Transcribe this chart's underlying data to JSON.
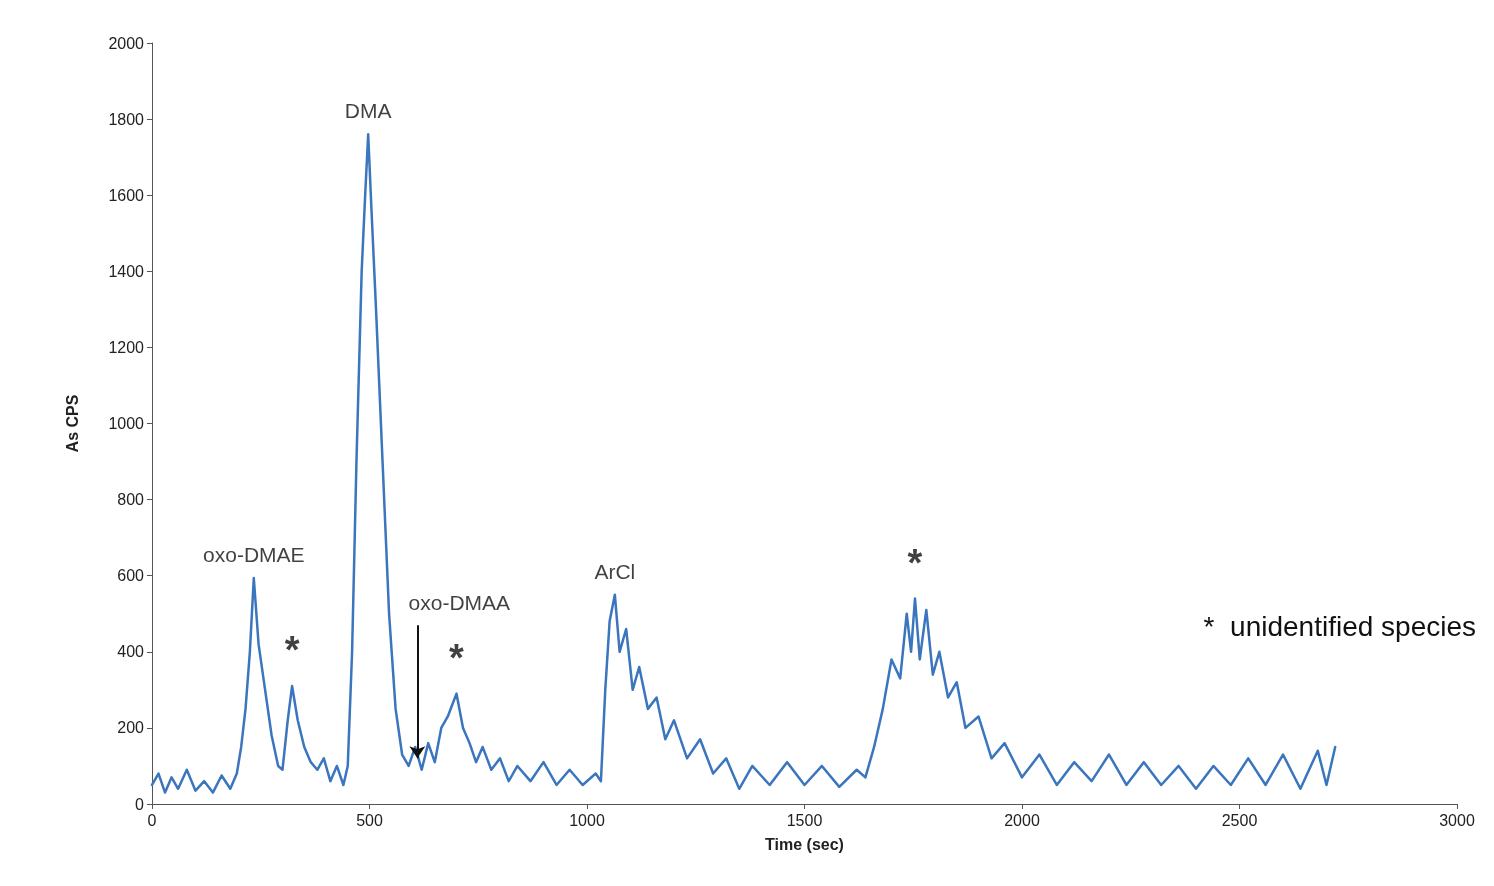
{
  "chart_data": {
    "type": "line",
    "xlabel": "Time (sec)",
    "ylabel": "As CPS",
    "xlim": [
      0,
      3000
    ],
    "xticks": [
      0,
      500,
      1000,
      1500,
      2000,
      2500,
      3000
    ],
    "ylim": [
      0,
      2000
    ],
    "yticks": [
      0,
      200,
      400,
      600,
      800,
      1000,
      1200,
      1400,
      1600,
      1800,
      2000
    ],
    "grid": false,
    "marker": "none",
    "line_style": "solid",
    "series": [
      {
        "color": "#3a75bd",
        "x": [
          0,
          15,
          30,
          45,
          60,
          80,
          100,
          120,
          140,
          160,
          180,
          195,
          205,
          215,
          225,
          234,
          245,
          260,
          275,
          290,
          300,
          312,
          322,
          335,
          350,
          365,
          380,
          395,
          410,
          425,
          440,
          450,
          460,
          470,
          482,
          490,
          497,
          505,
          515,
          530,
          545,
          560,
          575,
          590,
          605,
          620,
          635,
          650,
          665,
          680,
          700,
          715,
          730,
          745,
          760,
          780,
          800,
          820,
          840,
          870,
          900,
          930,
          960,
          990,
          1020,
          1032,
          1042,
          1052,
          1064,
          1075,
          1090,
          1105,
          1120,
          1140,
          1160,
          1180,
          1200,
          1230,
          1260,
          1290,
          1320,
          1350,
          1380,
          1420,
          1460,
          1500,
          1540,
          1580,
          1620,
          1640,
          1660,
          1680,
          1700,
          1720,
          1735,
          1745,
          1754,
          1765,
          1780,
          1795,
          1810,
          1830,
          1850,
          1870,
          1900,
          1930,
          1960,
          2000,
          2040,
          2080,
          2120,
          2160,
          2200,
          2240,
          2280,
          2320,
          2360,
          2400,
          2440,
          2480,
          2520,
          2560,
          2600,
          2640,
          2680,
          2700,
          2720
        ],
        "values": [
          50,
          80,
          30,
          70,
          40,
          90,
          35,
          60,
          30,
          75,
          40,
          80,
          150,
          250,
          400,
          594,
          420,
          300,
          180,
          100,
          90,
          220,
          310,
          220,
          150,
          110,
          90,
          120,
          60,
          100,
          50,
          100,
          400,
          900,
          1400,
          1600,
          1760,
          1550,
          1300,
          900,
          500,
          250,
          130,
          100,
          150,
          90,
          160,
          110,
          200,
          230,
          290,
          200,
          160,
          110,
          150,
          90,
          120,
          60,
          100,
          60,
          110,
          50,
          90,
          50,
          80,
          60,
          300,
          480,
          550,
          400,
          460,
          300,
          360,
          250,
          280,
          170,
          220,
          120,
          170,
          80,
          120,
          40,
          100,
          50,
          110,
          50,
          100,
          45,
          90,
          70,
          150,
          250,
          380,
          330,
          500,
          400,
          540,
          380,
          510,
          340,
          400,
          280,
          320,
          200,
          230,
          120,
          160,
          70,
          130,
          50,
          110,
          60,
          130,
          50,
          110,
          50,
          100,
          40,
          100,
          50,
          120,
          50,
          130,
          40,
          140,
          50,
          150
        ]
      }
    ],
    "annotations": [
      {
        "text": "oxo-DMAE",
        "x": 234,
        "y": 594
      },
      {
        "text": "*",
        "x": 322,
        "y": 310
      },
      {
        "text": "DMA",
        "x": 497,
        "y": 1760
      },
      {
        "text": "oxo-DMAA",
        "x": 610,
        "y": 120
      },
      {
        "text": "*",
        "x": 700,
        "y": 290
      },
      {
        "text": "ArCl",
        "x": 1064,
        "y": 550
      },
      {
        "text": "*",
        "x": 1754,
        "y": 540
      },
      "*  unidentified species"
    ]
  }
}
